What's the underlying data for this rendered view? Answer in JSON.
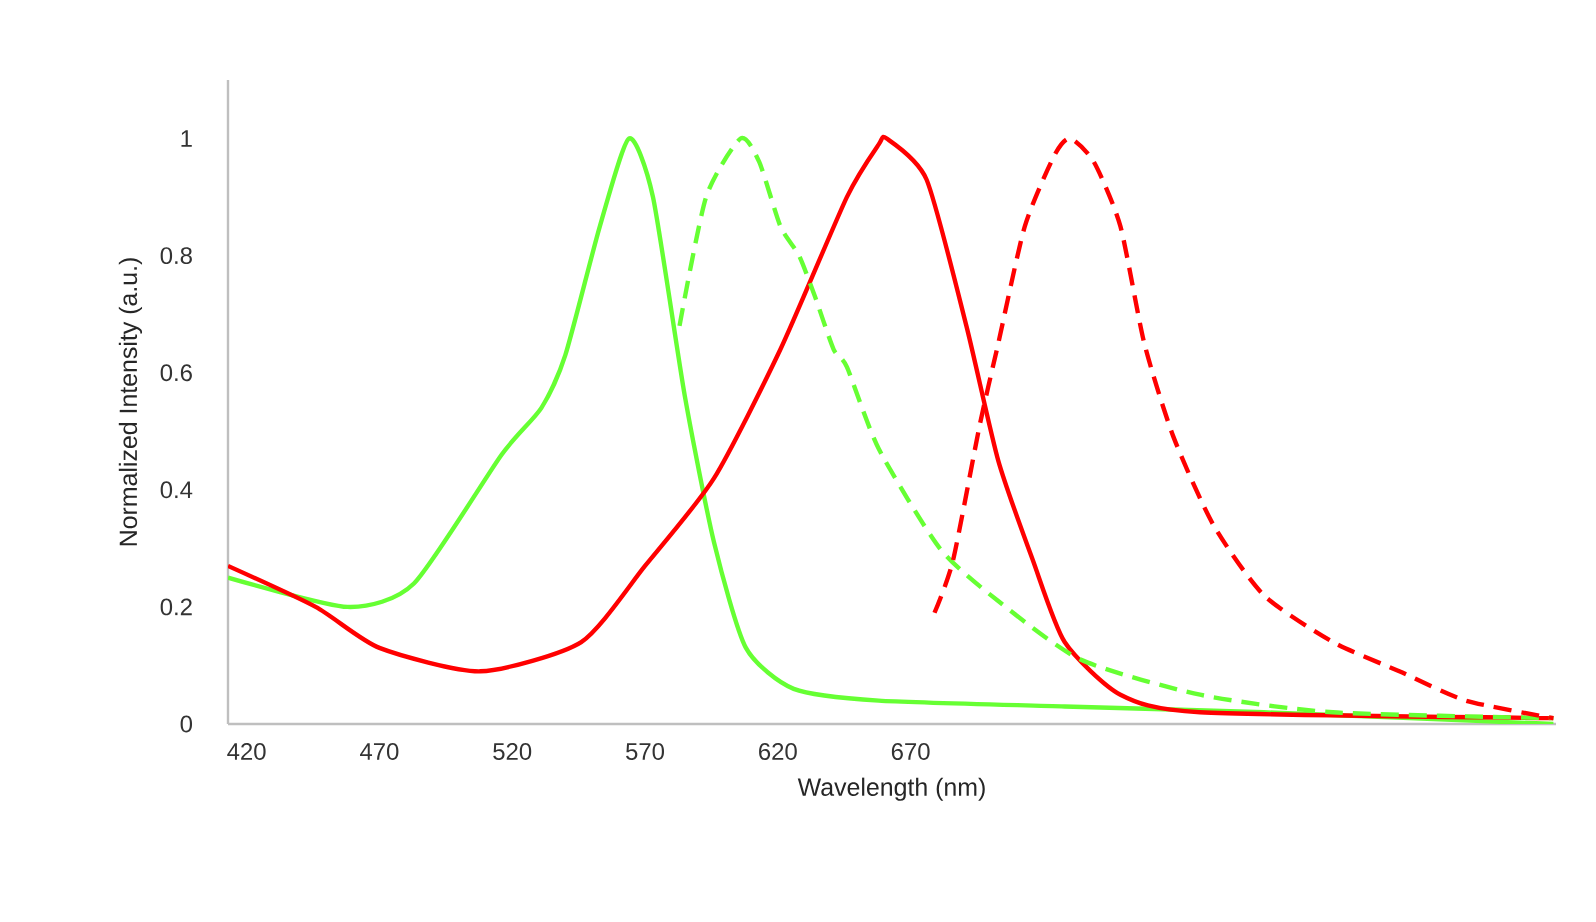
{
  "chart_data": {
    "type": "line",
    "xlabel": "Wavelength (nm)",
    "ylabel": "Normalized Intensity (a.u.)",
    "xlim": [
      413,
      913
    ],
    "ylim": [
      0,
      1.1
    ],
    "xticks": [
      420,
      470,
      520,
      570,
      620,
      670
    ],
    "yticks": [
      0,
      0.2,
      0.4,
      0.6,
      0.8,
      1
    ],
    "grid": false,
    "marker": "none",
    "series": [
      {
        "color": "#66ff33",
        "line_style": "solid",
        "x": [
          413,
          458,
          483,
          516,
          531,
          540,
          553,
          564,
          573,
          585,
          596,
          608,
          626,
          658,
          728,
          803,
          912
        ],
        "values": [
          0.25,
          0.2,
          0.24,
          0.46,
          0.54,
          0.63,
          0.85,
          1.0,
          0.9,
          0.56,
          0.31,
          0.13,
          0.06,
          0.04,
          0.03,
          0.02,
          0.0
        ]
      },
      {
        "color": "#ff0000",
        "line_style": "solid",
        "x": [
          413,
          446,
          470,
          508,
          546,
          570,
          596,
          621,
          646,
          658,
          661,
          676,
          691,
          703,
          716,
          728,
          749,
          779,
          912
        ],
        "values": [
          0.27,
          0.2,
          0.13,
          0.09,
          0.14,
          0.27,
          0.42,
          0.64,
          0.9,
          0.99,
          1.0,
          0.93,
          0.68,
          0.45,
          0.28,
          0.14,
          0.05,
          0.02,
          0.01
        ]
      },
      {
        "color": "#66ff33",
        "line_style": "dashed",
        "x": [
          583,
          593,
          606,
          613,
          621,
          628,
          634,
          641,
          646,
          658,
          681,
          703,
          734,
          779,
          829,
          912
        ],
        "values": [
          0.68,
          0.9,
          1.0,
          0.96,
          0.85,
          0.8,
          0.73,
          0.64,
          0.61,
          0.47,
          0.3,
          0.21,
          0.11,
          0.05,
          0.02,
          0.01
        ]
      },
      {
        "color": "#ff0000",
        "line_style": "dashed",
        "x": [
          679,
          686,
          696,
          703,
          713,
          724,
          730,
          739,
          749,
          758,
          769,
          784,
          803,
          829,
          854,
          879,
          912
        ],
        "values": [
          0.19,
          0.28,
          0.51,
          0.65,
          0.85,
          0.97,
          1.0,
          0.96,
          0.85,
          0.65,
          0.49,
          0.34,
          0.22,
          0.14,
          0.09,
          0.04,
          0.01
        ]
      }
    ]
  }
}
